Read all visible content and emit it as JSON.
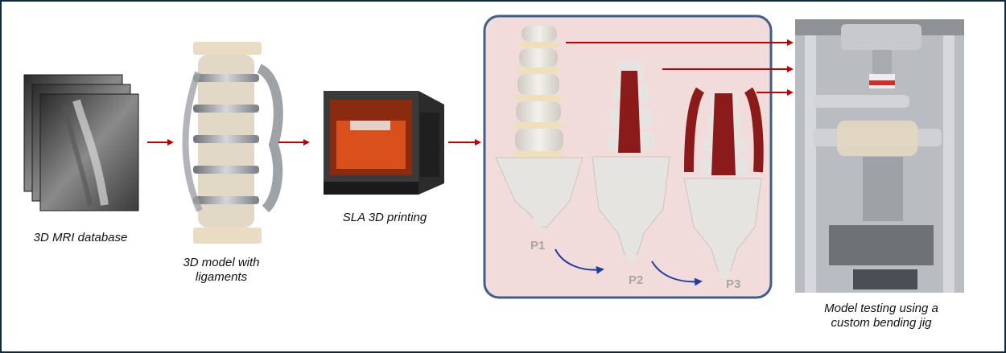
{
  "captions": {
    "mri": "3D MRI database",
    "model_line1": "3D model with",
    "model_line2": "ligaments",
    "printing": "SLA 3D printing",
    "testing_line1": "Model testing using a",
    "testing_line2": "custom bending jig"
  },
  "prototype_labels": [
    "P1",
    "P2",
    "P3"
  ],
  "colors": {
    "frame_border": "#0f2a3a",
    "flow_arrow": "#c00000",
    "curve_arrow": "#1f3f9c",
    "panel_fill": "#f2dcdb",
    "panel_border": "#3e5f8a",
    "ligament": "#8b1a1a",
    "bone": "#e8e6e2"
  },
  "icons": [
    "mri-stack-icon",
    "spine-model-icon",
    "printer-icon",
    "spine-prototype-icon",
    "testing-jig-icon"
  ]
}
